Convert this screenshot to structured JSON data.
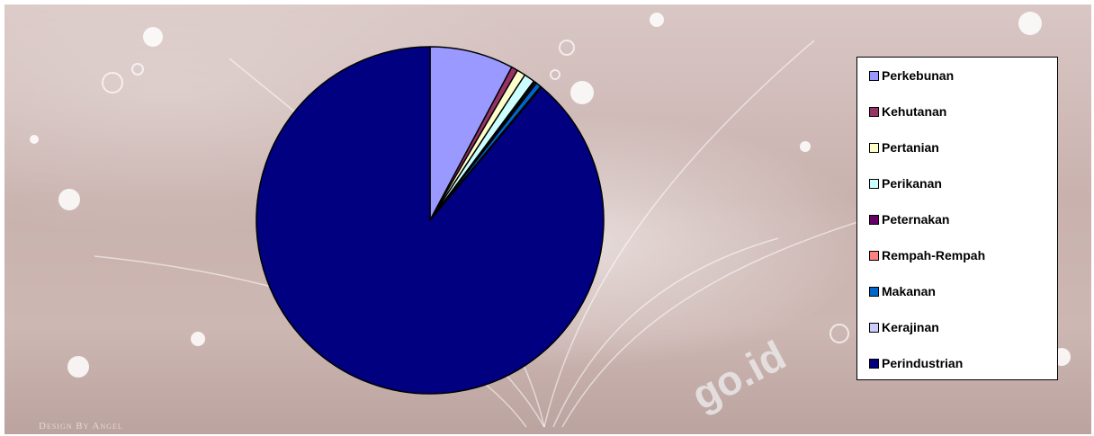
{
  "chart_data": {
    "type": "pie",
    "categories": [
      "Perkebunan",
      "Kehutanan",
      "Pertanian",
      "Perikanan",
      "Peternakan",
      "Rempah-Rempah",
      "Makanan",
      "Kerajinan",
      "Perindustrian"
    ],
    "values": [
      7.8,
      0.6,
      0.8,
      1.0,
      0.15,
      0.15,
      0.5,
      0.1,
      88.9
    ],
    "colors": [
      "#9999ff",
      "#993366",
      "#ffffcc",
      "#ccffff",
      "#660066",
      "#ff8080",
      "#0066cc",
      "#ccccff",
      "#000080"
    ],
    "legend_position": "right",
    "start_angle_deg": 0,
    "direction": "clockwise"
  },
  "background": {
    "credit": "Design By Angel",
    "watermark": "go.id"
  }
}
